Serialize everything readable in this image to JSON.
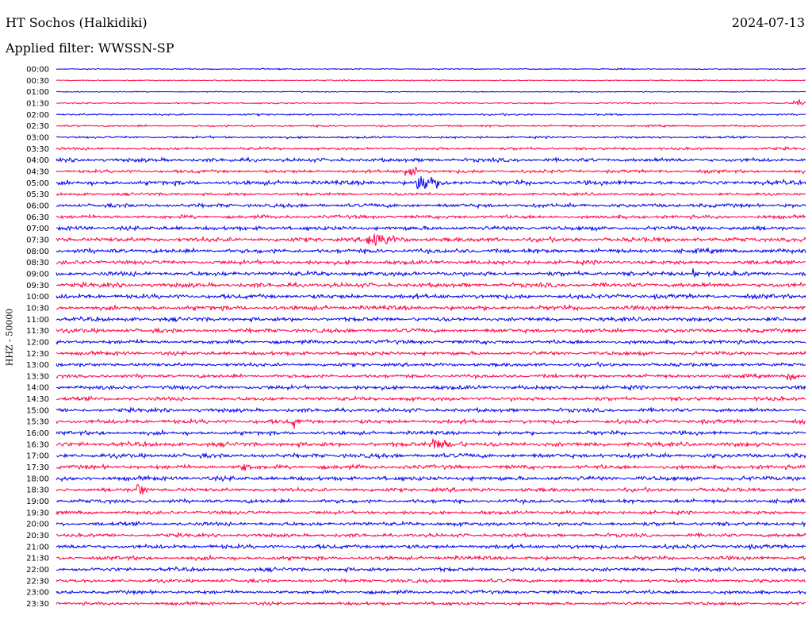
{
  "header": {
    "station": "HT Sochos (Halkidiki)",
    "date": "2024-07-13",
    "filter": "Applied filter: WWSSN-SP"
  },
  "axis": {
    "ylabel": "HHZ - 50000"
  },
  "colors": {
    "odd_trace": "#0000ee",
    "even_trace": "#ff0044",
    "background": "#ffffff"
  },
  "chart_data": {
    "type": "line",
    "title": "",
    "ylabel": "HHZ - 50000",
    "row_labels": [
      "00:00",
      "00:30",
      "01:00",
      "01:30",
      "02:00",
      "02:30",
      "03:00",
      "03:30",
      "04:00",
      "04:30",
      "05:00",
      "05:30",
      "06:00",
      "06:30",
      "07:00",
      "07:30",
      "08:00",
      "08:30",
      "09:00",
      "09:30",
      "10:00",
      "10:30",
      "11:00",
      "11:30",
      "12:00",
      "12:30",
      "13:00",
      "13:30",
      "14:00",
      "14:30",
      "15:00",
      "15:30",
      "16:00",
      "16:30",
      "17:00",
      "17:30",
      "18:00",
      "18:30",
      "19:00",
      "19:30",
      "20:00",
      "20:30",
      "21:00",
      "21:30",
      "22:00",
      "22:30",
      "23:00",
      "23:30"
    ],
    "noise_level": [
      0.8,
      0.8,
      0.7,
      1.0,
      1.3,
      1.3,
      1.5,
      1.8,
      2.6,
      2.2,
      3.0,
      2.0,
      2.6,
      2.4,
      2.8,
      3.0,
      3.0,
      2.8,
      3.0,
      3.0,
      3.0,
      3.0,
      2.8,
      2.8,
      2.6,
      2.6,
      2.4,
      2.4,
      2.8,
      2.6,
      2.6,
      2.8,
      2.6,
      3.0,
      3.0,
      2.8,
      3.0,
      2.6,
      2.6,
      2.4,
      2.6,
      2.4,
      2.8,
      2.6,
      2.6,
      2.4,
      2.4,
      2.2
    ],
    "events": [
      {
        "row": "05:00",
        "minute": 14.5,
        "amplitude": 20,
        "duration_min": 1.5
      },
      {
        "row": "04:30",
        "minute": 14.0,
        "amplitude": 12,
        "duration_min": 1.0
      },
      {
        "row": "07:30",
        "minute": 12.5,
        "amplitude": 16,
        "duration_min": 2.0
      },
      {
        "row": "16:30",
        "minute": 15.0,
        "amplitude": 9,
        "duration_min": 3.0
      },
      {
        "row": "18:30",
        "minute": 3.3,
        "amplitude": 14,
        "duration_min": 0.6
      },
      {
        "row": "17:30",
        "minute": 7.5,
        "amplitude": 12,
        "duration_min": 0.6
      },
      {
        "row": "15:30",
        "minute": 9.5,
        "amplitude": 10,
        "duration_min": 0.6
      },
      {
        "row": "09:00",
        "minute": 25.5,
        "amplitude": 9,
        "duration_min": 0.4
      },
      {
        "row": "13:30",
        "minute": 29.3,
        "amplitude": 8,
        "duration_min": 0.8
      },
      {
        "row": "01:30",
        "minute": 29.6,
        "amplitude": 7,
        "duration_min": 0.8
      }
    ]
  }
}
